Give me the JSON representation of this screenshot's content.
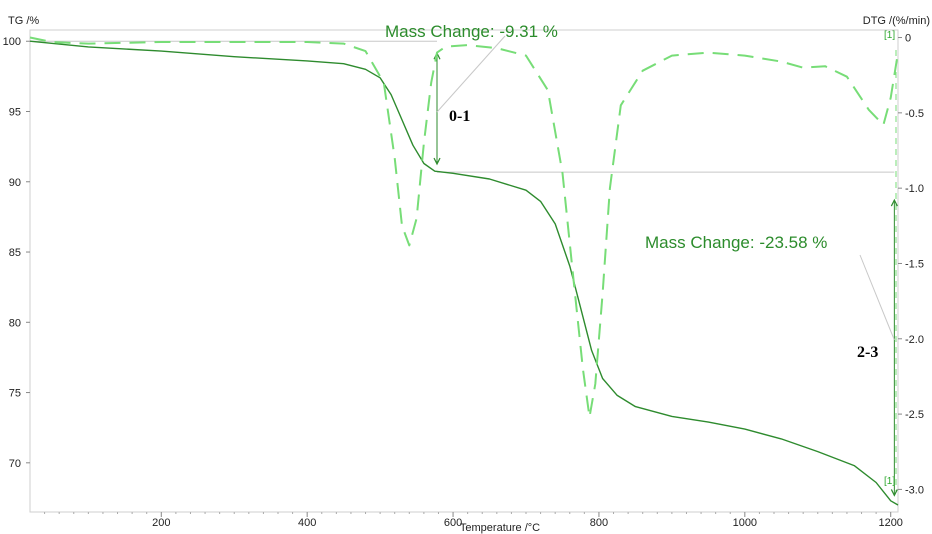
{
  "chart_data": {
    "type": "line",
    "xlabel": "Temperature /°C",
    "ylabel_left": "TG /%",
    "ylabel_right": "DTG /(%/min)",
    "xlim": [
      20,
      1210
    ],
    "ylim_left": [
      66.5,
      100.8
    ],
    "ylim_right": [
      -3.15,
      0.05
    ],
    "x_ticks": [
      200,
      400,
      600,
      800,
      1000,
      1200
    ],
    "y_ticks_left": [
      70,
      75,
      80,
      85,
      90,
      95,
      100
    ],
    "y_ticks_right": [
      0,
      -0.5,
      -1.0,
      -1.5,
      -2.0,
      -2.5,
      -3.0
    ],
    "y_ticks_right_labels": [
      "0",
      "-0.5",
      "-1.0",
      "-1.5",
      "-2.0",
      "-2.5",
      "-3.0"
    ],
    "series": [
      {
        "axis": "left",
        "style": "solid",
        "color": "#2e8b2e",
        "points": [
          [
            20,
            100
          ],
          [
            100,
            99.6
          ],
          [
            200,
            99.3
          ],
          [
            300,
            98.9
          ],
          [
            400,
            98.6
          ],
          [
            450,
            98.4
          ],
          [
            480,
            98.0
          ],
          [
            500,
            97.4
          ],
          [
            515,
            96.2
          ],
          [
            530,
            94.4
          ],
          [
            545,
            92.6
          ],
          [
            560,
            91.3
          ],
          [
            575,
            90.75
          ],
          [
            600,
            90.6
          ],
          [
            650,
            90.2
          ],
          [
            700,
            89.4
          ],
          [
            720,
            88.6
          ],
          [
            740,
            87.0
          ],
          [
            760,
            84.0
          ],
          [
            775,
            81.0
          ],
          [
            790,
            78.0
          ],
          [
            805,
            76.0
          ],
          [
            825,
            74.8
          ],
          [
            850,
            74.0
          ],
          [
            900,
            73.3
          ],
          [
            950,
            72.9
          ],
          [
            1000,
            72.4
          ],
          [
            1050,
            71.7
          ],
          [
            1100,
            70.8
          ],
          [
            1150,
            69.8
          ],
          [
            1180,
            68.6
          ],
          [
            1200,
            67.3
          ],
          [
            1210,
            67.0
          ]
        ]
      },
      {
        "axis": "right",
        "style": "dashed",
        "color": "#77dd77",
        "points": [
          [
            20,
            0.0
          ],
          [
            50,
            -0.03
          ],
          [
            100,
            -0.04
          ],
          [
            200,
            -0.03
          ],
          [
            300,
            -0.03
          ],
          [
            400,
            -0.03
          ],
          [
            450,
            -0.04
          ],
          [
            480,
            -0.09
          ],
          [
            505,
            -0.3
          ],
          [
            520,
            -0.8
          ],
          [
            530,
            -1.25
          ],
          [
            540,
            -1.38
          ],
          [
            550,
            -1.2
          ],
          [
            560,
            -0.7
          ],
          [
            570,
            -0.3
          ],
          [
            578,
            -0.1
          ],
          [
            590,
            -0.06
          ],
          [
            620,
            -0.05
          ],
          [
            660,
            -0.07
          ],
          [
            700,
            -0.12
          ],
          [
            730,
            -0.35
          ],
          [
            750,
            -0.9
          ],
          [
            765,
            -1.6
          ],
          [
            778,
            -2.2
          ],
          [
            787,
            -2.52
          ],
          [
            795,
            -2.3
          ],
          [
            805,
            -1.7
          ],
          [
            815,
            -1.0
          ],
          [
            830,
            -0.45
          ],
          [
            860,
            -0.22
          ],
          [
            900,
            -0.12
          ],
          [
            950,
            -0.1
          ],
          [
            1000,
            -0.12
          ],
          [
            1050,
            -0.16
          ],
          [
            1080,
            -0.2
          ],
          [
            1110,
            -0.19
          ],
          [
            1140,
            -0.26
          ],
          [
            1170,
            -0.48
          ],
          [
            1190,
            -0.58
          ],
          [
            1200,
            -0.4
          ],
          [
            1210,
            -0.1
          ]
        ]
      }
    ],
    "annotations": [
      {
        "text": "Mass Change: -9.31 %",
        "start_temp": 578,
        "from_mass": 100.0,
        "to_mass": 90.69
      },
      {
        "text": "Mass Change: -23.58 %",
        "start_temp": 1205,
        "from_mass": 90.69,
        "to_mass": 67.11
      },
      {
        "text": "0-1"
      },
      {
        "text": "2-3"
      },
      {
        "text": "[1]"
      },
      {
        "text": "[1]"
      }
    ],
    "grid": false,
    "legend": "none"
  }
}
